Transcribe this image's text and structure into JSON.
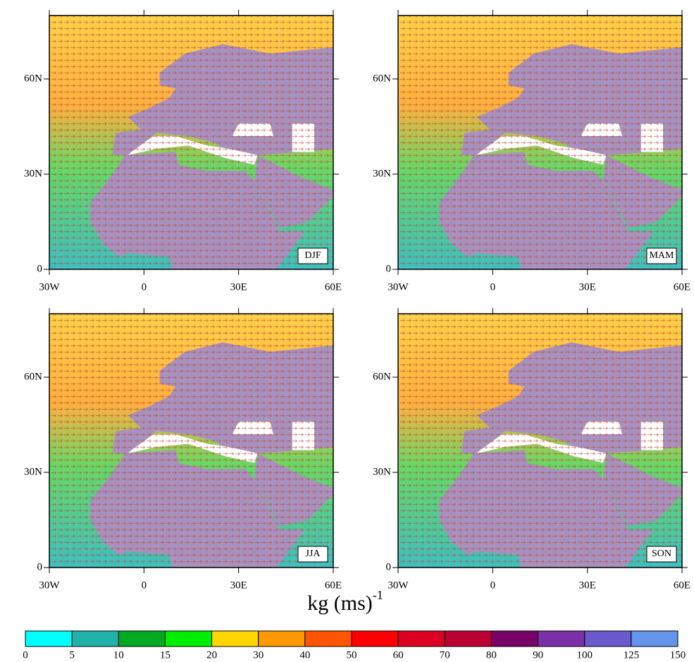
{
  "chart_data": {
    "type": "map",
    "panels": [
      {
        "label": "DJF"
      },
      {
        "label": "MAM"
      },
      {
        "label": "JJA"
      },
      {
        "label": "SON"
      }
    ],
    "xlim": [
      -30,
      60
    ],
    "ylim": [
      0,
      80
    ],
    "xticks": [
      {
        "value": -30,
        "label": "30W"
      },
      0,
      {
        "value": 30,
        "label": "30E"
      },
      {
        "value": 60,
        "label": "60E"
      }
    ],
    "yticks": [
      0,
      {
        "value": 30,
        "label": "30N"
      },
      {
        "value": 60,
        "label": "60N"
      }
    ],
    "colorbar": {
      "title": "kg (ms)",
      "title_exponent": "-1",
      "bins": [
        0,
        5,
        10,
        15,
        20,
        30,
        40,
        50,
        60,
        70,
        80,
        90,
        100,
        125,
        150
      ],
      "colors": [
        "#00ffff",
        "#20b2aa",
        "#00aa22",
        "#00ee00",
        "#ffd700",
        "#ff9900",
        "#ff5500",
        "#ff0000",
        "#dd0022",
        "#bb0033",
        "#770066",
        "#7b2fa8",
        "#6a5acd",
        "#6495ed"
      ]
    }
  }
}
